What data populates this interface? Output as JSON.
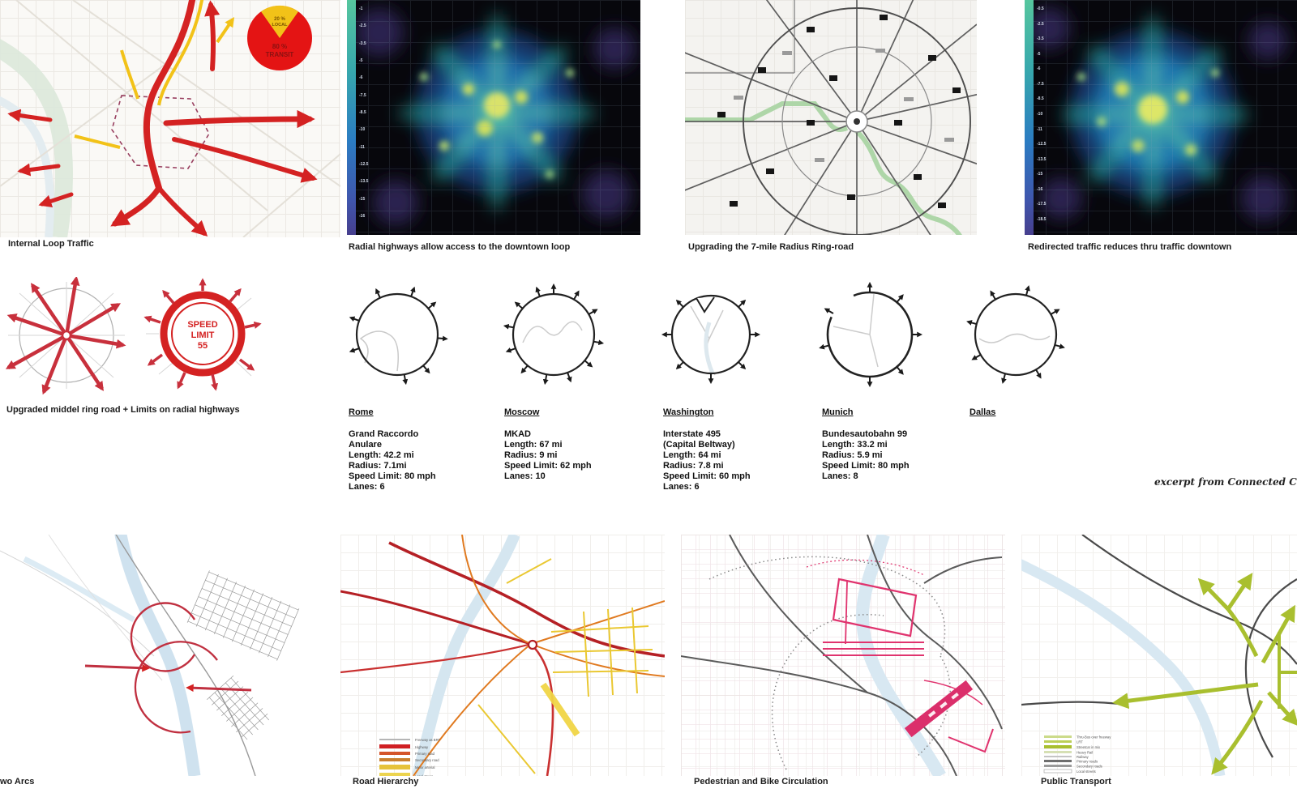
{
  "colors": {
    "accent_red": "#d42222",
    "accent_yellow": "#f2c218",
    "pink": "#e0336e",
    "olive_green": "#a9bf2f",
    "heat_palette": [
      "#56c69e",
      "#2b7cc2",
      "#473f8e",
      "#d9e26b"
    ]
  },
  "row1": {
    "panel1": {
      "caption": "Internal Loop Traffic",
      "pie": {
        "top_value": "20 %",
        "top_word": "LOCAL",
        "main_value": "80 %",
        "main_word": "TRANSIT",
        "slice_top_pct": 20,
        "slice_main_pct": 80
      }
    },
    "panel2": {
      "caption": "Radial highways allow access to the downtown loop",
      "colorbar_ticks": [
        "-1",
        "-2.5",
        "-3.5",
        "-5",
        "-6",
        "-7.5",
        "-8.5",
        "-10",
        "-11",
        "-12.5",
        "-13.5",
        "-15",
        "-16"
      ]
    },
    "panel3": {
      "caption": "Upgrading  the 7-mile Radius Ring-road"
    },
    "panel4": {
      "caption": "Redirected traffic reduces thru traffic downtown",
      "colorbar_ticks": [
        "-0.5",
        "-2.5",
        "-3.5",
        "-5",
        "-6",
        "-7.5",
        "-8.5",
        "-10",
        "-11",
        "-12.5",
        "-13.5",
        "-15",
        "-16",
        "-17.5",
        "-18.5"
      ]
    }
  },
  "row2": {
    "left_caption": "Upgraded middel ring road + Limits on radial highways",
    "speed_sign": {
      "line1": "SPEED",
      "line2": "LIMIT",
      "line3": "55"
    },
    "cities": [
      {
        "name": "Rome",
        "lines": [
          "Grand Raccordo",
          "Anulare",
          "Length: 42.2 mi",
          "Radius: 7.1mi",
          "Speed Limit: 80 mph",
          "Lanes: 6"
        ]
      },
      {
        "name": "Moscow",
        "lines": [
          "MKAD",
          "Length: 67 mi",
          "Radius: 9 mi",
          "Speed Limit: 62 mph",
          "Lanes: 10"
        ]
      },
      {
        "name": "Washington",
        "lines": [
          "Interstate 495",
          "(Capital Beltway)",
          "Length: 64 mi",
          "Radius: 7.8 mi",
          "Speed Limit: 60 mph",
          "Lanes: 6"
        ]
      },
      {
        "name": "Munich",
        "lines": [
          "Bundesautobahn 99",
          "Length: 33.2 mi",
          "Radius: 5.9 mi",
          "Speed Limit: 80 mph",
          "Lanes: 8"
        ]
      },
      {
        "name": "Dallas",
        "lines": []
      }
    ],
    "credit": "excerpt from Connected Citi"
  },
  "row3": {
    "panelA": {
      "caption": "wo Arcs"
    },
    "panelB": {
      "caption": "Road Hierarchy",
      "legend": [
        "Freeway as BRT",
        "Highway",
        "Primary road",
        "Secondary road",
        "Minor arterial",
        "Local street"
      ],
      "legend_colors": [
        "#b5b5b5",
        "#d01f23",
        "#d4552a",
        "#c87f2e",
        "#e6c33a",
        "#ecd44f"
      ]
    },
    "panelC": {
      "caption": "Pedestrian and Bike Circulation"
    },
    "panelD": {
      "caption": "Public Transport",
      "legend": [
        "Thru-Bus over freeway",
        "LRT",
        "Streetcar in mix",
        "Heavy Rail",
        "Railway",
        "Primary roads",
        "Secondary roads",
        "Local streets"
      ],
      "legend_colors": [
        "#ccdb8a",
        "#bccf57",
        "#a9bf2f",
        "#d6e0b4",
        "#c4c4c4",
        "#6e6e6e",
        "#9a9a9a",
        "#ffffff"
      ]
    }
  }
}
